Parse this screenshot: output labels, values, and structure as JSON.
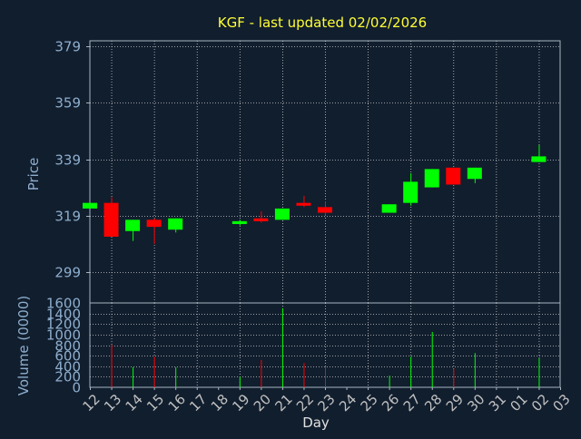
{
  "colors": {
    "background": "#111e2e",
    "title": "#ffff33",
    "axis_text": "#8eaecd",
    "xtick_text": "#c0c0c0",
    "grid": "#c8c8c8",
    "frame": "#a8b4c0",
    "up": "#00ff00",
    "down": "#ff0000"
  },
  "chart_data": {
    "type": "candlestick",
    "title": "KGF - last updated 02/02/2026",
    "price_ylabel": "Price",
    "volume_ylabel": "Volume (0000)",
    "xlabel": "Day",
    "price_ylim": [
      288,
      381
    ],
    "price_yticks": [
      299,
      319,
      339,
      359,
      379
    ],
    "volume_ylim": [
      0,
      1600
    ],
    "volume_yticks": [
      0,
      200,
      400,
      600,
      800,
      1000,
      1200,
      1400,
      1600
    ],
    "x_tick_labels": [
      "12",
      "13",
      "14",
      "15",
      "16",
      "17",
      "18",
      "19",
      "20",
      "21",
      "22",
      "23",
      "24",
      "25",
      "26",
      "27",
      "28",
      "29",
      "30",
      "31",
      "01",
      "02",
      "03"
    ],
    "candles": [
      {
        "day": "12",
        "open": 321.5,
        "high": 323.5,
        "low": 321.5,
        "close": 323.5,
        "volume": 0
      },
      {
        "day": "13",
        "open": 323.5,
        "high": 325.5,
        "low": 311.5,
        "close": 311.5,
        "volume": 800
      },
      {
        "day": "14",
        "open": 313.5,
        "high": 317.5,
        "low": 310.0,
        "close": 317.5,
        "volume": 380
      },
      {
        "day": "15",
        "open": 317.5,
        "high": 318.0,
        "low": 309.0,
        "close": 315.0,
        "volume": 580
      },
      {
        "day": "16",
        "open": 314.0,
        "high": 318.0,
        "low": 313.0,
        "close": 318.0,
        "volume": 380
      },
      {
        "day": "19",
        "open": 316.0,
        "high": 317.5,
        "low": 315.5,
        "close": 317.0,
        "volume": 200
      },
      {
        "day": "20",
        "open": 318.0,
        "high": 320.5,
        "low": 316.5,
        "close": 317.0,
        "volume": 520
      },
      {
        "day": "21",
        "open": 317.5,
        "high": 321.5,
        "low": 317.5,
        "close": 321.5,
        "volume": 1500
      },
      {
        "day": "22",
        "open": 323.5,
        "high": 326.0,
        "low": 322.0,
        "close": 322.5,
        "volume": 460
      },
      {
        "day": "23",
        "open": 322.0,
        "high": 324.0,
        "low": 319.0,
        "close": 320.0,
        "volume": 400
      },
      {
        "day": "26",
        "open": 320.0,
        "high": 323.0,
        "low": 320.0,
        "close": 323.0,
        "volume": 220
      },
      {
        "day": "27",
        "open": 323.5,
        "high": 334.0,
        "low": 322.5,
        "close": 331.0,
        "volume": 580
      },
      {
        "day": "28",
        "open": 329.0,
        "high": 335.5,
        "low": 329.0,
        "close": 335.5,
        "volume": 1050
      },
      {
        "day": "29",
        "open": 336.0,
        "high": 336.0,
        "low": 330.0,
        "close": 330.0,
        "volume": 350
      },
      {
        "day": "30",
        "open": 332.0,
        "high": 336.0,
        "low": 330.5,
        "close": 336.0,
        "volume": 650
      },
      {
        "day": "02",
        "open": 338.0,
        "high": 344.0,
        "low": 338.0,
        "close": 340.0,
        "volume": 550
      }
    ]
  }
}
